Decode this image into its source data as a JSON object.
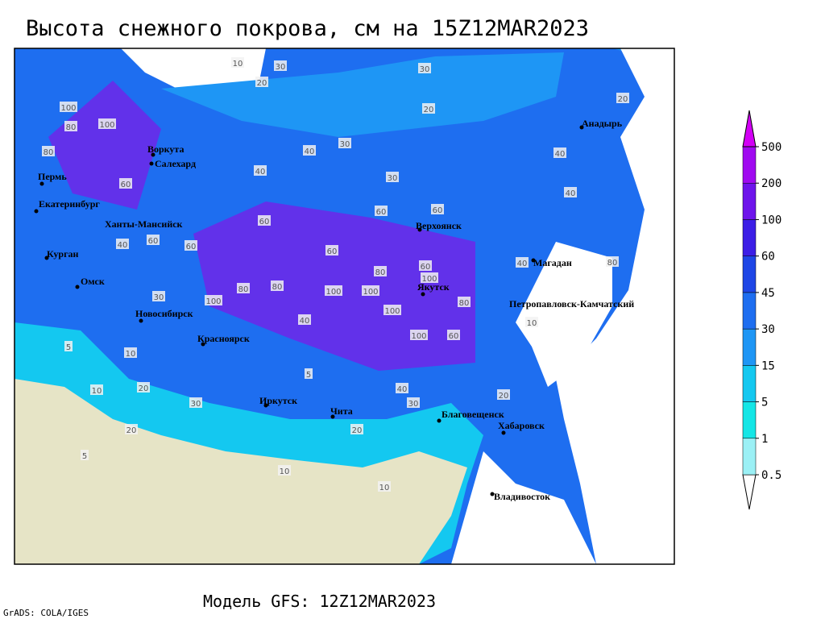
{
  "title": "Высота снежного покрова, см на 15Z12MAR2023",
  "subtitle": "Модель GFS: 12Z12MAR2023",
  "credit": "GrADS: COLA/IGES",
  "colorbar": {
    "levels": [
      0.5,
      1,
      5,
      15,
      30,
      45,
      60,
      100,
      200,
      500
    ],
    "colors": [
      "#ffffff",
      "#9bf0f5",
      "#14e6e6",
      "#14c8f0",
      "#1e96f5",
      "#1e6ef0",
      "#1e46e6",
      "#3c1ee6",
      "#6e14eb",
      "#a00af0",
      "#d200f5"
    ]
  },
  "cities": [
    "Воркута",
    "Салехард",
    "Пермь",
    "Екатеринбург",
    "Ханты-Мансийск",
    "Курган",
    "Омск",
    "Новосибирск",
    "Красноярск",
    "Иркутск",
    "Чита",
    "Благовещенск",
    "Хабаровск",
    "Владивосток",
    "Якутск",
    "Верхоянск",
    "Магадан",
    "Петропавловск-Камчатский",
    "Анадырь"
  ],
  "contour_labels": [
    10,
    30,
    30,
    20,
    20,
    20,
    100,
    100,
    80,
    80,
    30,
    40,
    40,
    40,
    30,
    60,
    60,
    60,
    60,
    60,
    60,
    60,
    40,
    80,
    80,
    80,
    100,
    100,
    100,
    60,
    100,
    80,
    100,
    30,
    100,
    60,
    40,
    10,
    5,
    10,
    20,
    30,
    5,
    20,
    40,
    30,
    20,
    10,
    40,
    40,
    80,
    10,
    10,
    5,
    20
  ]
}
